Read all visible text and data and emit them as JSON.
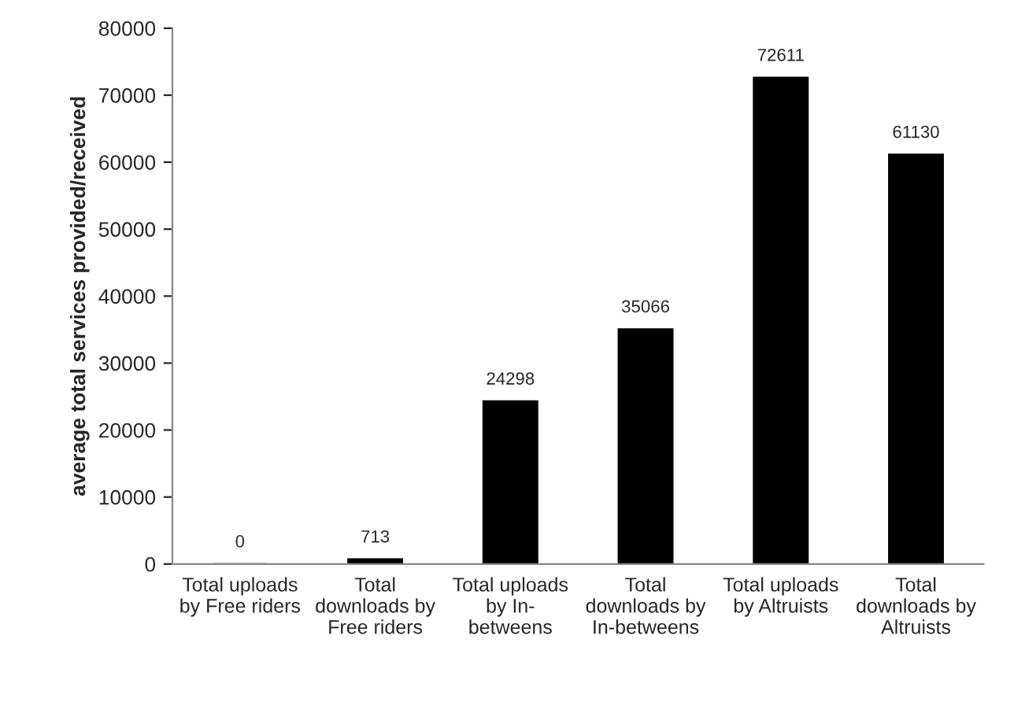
{
  "chart_data": {
    "type": "bar",
    "ylabel": "average total services provided/received",
    "categories": [
      "Total uploads\nby Free riders",
      "Total\ndownloads by\nFree riders",
      "Total uploads\nby In-\nbetweens",
      "Total\ndownloads by\nIn-betweens",
      "Total uploads\nby Altruists",
      "Total\ndownloads by\nAltruists"
    ],
    "values": [
      0,
      713,
      24298,
      35066,
      72611,
      61130
    ],
    "color": "#000000",
    "ylim": [
      0,
      80000
    ],
    "yticks": [
      0,
      10000,
      20000,
      30000,
      40000,
      50000,
      60000,
      70000,
      80000
    ],
    "data_labels": true,
    "grid": false,
    "legend": false
  }
}
